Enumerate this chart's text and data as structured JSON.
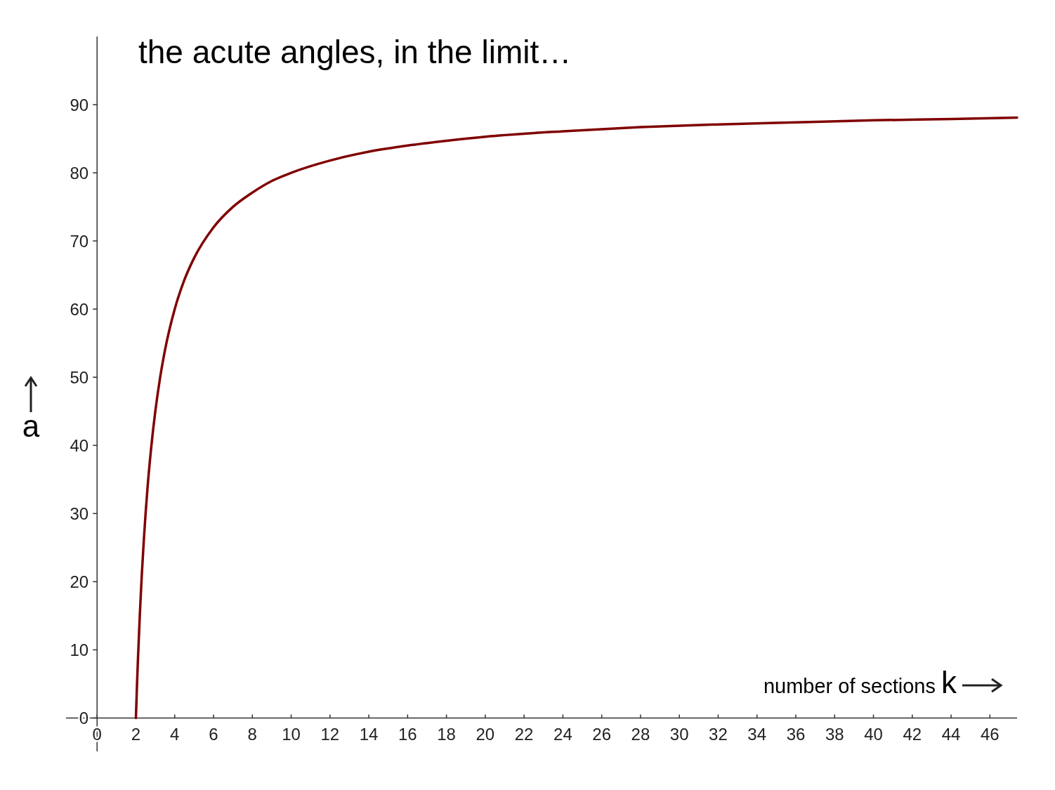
{
  "chart_data": {
    "type": "line",
    "title": "the acute angles, in the limit…",
    "xlabel": "number of sections k",
    "ylabel": "a",
    "xlim": [
      -1.6,
      47.4
    ],
    "ylim": [
      -4.9,
      100
    ],
    "xticks": [
      0,
      2,
      4,
      6,
      8,
      10,
      12,
      14,
      16,
      18,
      20,
      22,
      24,
      26,
      28,
      30,
      32,
      34,
      36,
      38,
      40,
      42,
      44,
      46
    ],
    "yticks": [
      0,
      10,
      20,
      30,
      40,
      50,
      60,
      70,
      80,
      90
    ],
    "grid": false,
    "marker": "none",
    "line_style": "solid",
    "series": [
      {
        "color": "#800000",
        "x": [
          2,
          2.05,
          2.1,
          2.2,
          2.3,
          2.4,
          2.6,
          2.8,
          3,
          3.25,
          3.5,
          4,
          4.5,
          5,
          6,
          7,
          8,
          9,
          10,
          12,
          14,
          16,
          18,
          20,
          24,
          28,
          32,
          36,
          40,
          44,
          47.4
        ],
        "values": [
          0,
          4.3,
          8.2,
          15,
          20.8,
          25.7,
          33.8,
          40,
          45,
          50,
          54,
          60,
          64.3,
          67.5,
          72,
          75,
          77.1,
          78.8,
          80,
          81.8,
          83.1,
          84,
          84.7,
          85.3,
          86.1,
          86.7,
          87.1,
          87.4,
          87.7,
          87.9,
          88.1
        ]
      }
    ]
  }
}
